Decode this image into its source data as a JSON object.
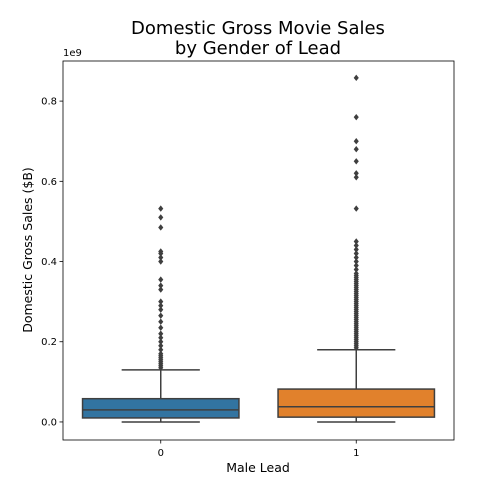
{
  "chart_data": {
    "type": "box",
    "title_lines": [
      "Domestic Gross Movie Sales",
      "by Gender of Lead"
    ],
    "xlabel": "Male Lead",
    "ylabel": "Domestic Gross Sales ($B)",
    "offset_text": "1e9",
    "ylim": [
      -0.045,
      0.9
    ],
    "yticks": [
      0.0,
      0.2,
      0.4,
      0.6,
      0.8
    ],
    "ytick_labels": [
      "0.0",
      "0.2",
      "0.4",
      "0.6",
      "0.8"
    ],
    "categories": [
      "0",
      "1"
    ],
    "boxes": [
      {
        "category": "0",
        "color": "#3274a1",
        "whisker_low": 0.0,
        "q1": 0.01,
        "median": 0.03,
        "q3": 0.058,
        "whisker_high": 0.13,
        "outliers": [
          0.135,
          0.14,
          0.145,
          0.15,
          0.155,
          0.16,
          0.165,
          0.17,
          0.18,
          0.19,
          0.2,
          0.21,
          0.22,
          0.235,
          0.25,
          0.265,
          0.28,
          0.29,
          0.3,
          0.33,
          0.34,
          0.355,
          0.4,
          0.41,
          0.42,
          0.425,
          0.485,
          0.51,
          0.532
        ]
      },
      {
        "category": "1",
        "color": "#e1812c",
        "whisker_low": 0.0,
        "q1": 0.012,
        "median": 0.038,
        "q3": 0.082,
        "whisker_high": 0.18,
        "outliers": [
          0.185,
          0.19,
          0.195,
          0.2,
          0.205,
          0.21,
          0.215,
          0.22,
          0.225,
          0.23,
          0.235,
          0.24,
          0.245,
          0.25,
          0.255,
          0.26,
          0.265,
          0.27,
          0.275,
          0.28,
          0.285,
          0.29,
          0.295,
          0.3,
          0.305,
          0.31,
          0.315,
          0.32,
          0.325,
          0.33,
          0.335,
          0.34,
          0.345,
          0.35,
          0.355,
          0.36,
          0.365,
          0.37,
          0.38,
          0.39,
          0.4,
          0.41,
          0.42,
          0.43,
          0.44,
          0.45,
          0.532,
          0.61,
          0.62,
          0.65,
          0.68,
          0.7,
          0.76,
          0.858
        ]
      }
    ]
  }
}
